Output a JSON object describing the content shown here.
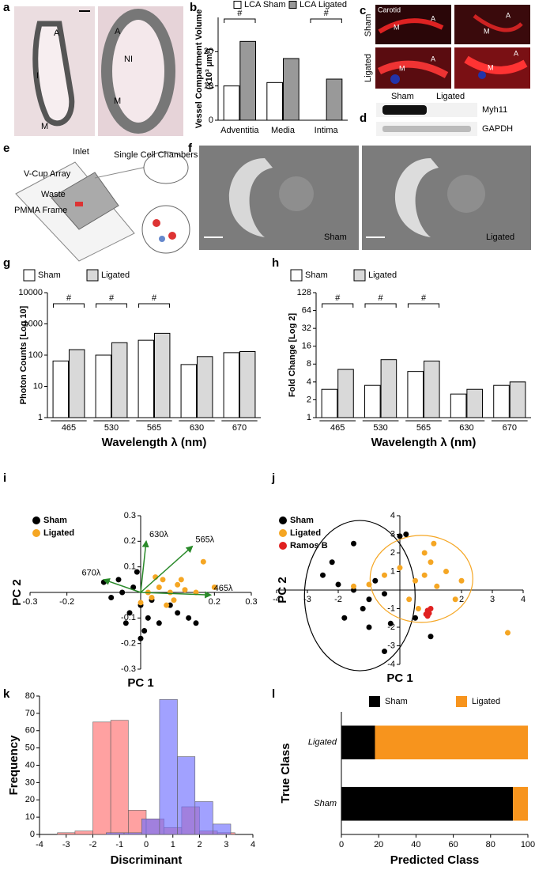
{
  "panel_labels": [
    "a",
    "b",
    "c",
    "d",
    "e",
    "f",
    "g",
    "h",
    "i",
    "j",
    "k",
    "l"
  ],
  "histology": {
    "sham": [
      "A",
      "I",
      "M"
    ],
    "ligated": [
      "A",
      "NI",
      "M"
    ]
  },
  "immunostain": {
    "title": "Carotid",
    "rows": [
      "Sham",
      "Ligated"
    ],
    "tiles": [
      "M",
      "A",
      "M",
      "A",
      "M",
      "A",
      "M",
      "A"
    ]
  },
  "western_blot": {
    "columns": [
      "Sham",
      "Ligated"
    ],
    "rows": [
      "Myh11",
      "GAPDH"
    ]
  },
  "device": {
    "labels": [
      "Inlet",
      "Single Cell Chambers",
      "V-Cup Array",
      "Waste",
      "PMMA Frame"
    ]
  },
  "cell_images": [
    "Sham",
    "Ligated"
  ],
  "chart_data": [
    {
      "type": "bar",
      "ylabel": [
        "Vessel Compartment Volume",
        "(x10³ µm³)"
      ],
      "categories": [
        "Adventitia",
        "Media",
        "Intima"
      ],
      "series": [
        {
          "name": "LCA Sham",
          "color": "#ffffff",
          "values": [
            10,
            11,
            0
          ]
        },
        {
          "name": "LCA Ligated",
          "color": "#999999",
          "values": [
            23,
            18,
            12
          ]
        }
      ],
      "significance": [
        "#",
        null,
        "#"
      ],
      "ylim": [
        0,
        30
      ],
      "yticks": [
        0,
        10,
        20
      ]
    },
    {
      "type": "bar",
      "ylabel": "Photon Counts [Log 10]",
      "xlabel": "Wavelength λ (nm)",
      "log_y": true,
      "categories": [
        "465",
        "530",
        "565",
        "630",
        "670"
      ],
      "series": [
        {
          "name": "Sham",
          "color": "#ffffff",
          "values": [
            65,
            100,
            300,
            50,
            120
          ]
        },
        {
          "name": "Ligated",
          "color": "#d9d9d9",
          "values": [
            150,
            250,
            500,
            90,
            130
          ]
        }
      ],
      "significance": [
        "#",
        "#",
        "#",
        null,
        null
      ],
      "ylim": [
        1,
        10000
      ],
      "yticks": [
        1,
        10,
        100,
        1000,
        10000
      ]
    },
    {
      "type": "bar",
      "ylabel": "Fold Change [Log 2]",
      "xlabel": "Wavelength λ (nm)",
      "log_y": true,
      "categories": [
        "465",
        "530",
        "565",
        "630",
        "670"
      ],
      "series": [
        {
          "name": "Sham",
          "color": "#ffffff",
          "values": [
            3,
            3.5,
            6,
            2.5,
            3.5
          ]
        },
        {
          "name": "Ligated",
          "color": "#d9d9d9",
          "values": [
            6.5,
            9.5,
            9,
            3,
            4
          ]
        }
      ],
      "significance": [
        "#",
        "#",
        "#",
        null,
        null
      ],
      "ylim": [
        1,
        128
      ],
      "yticks": [
        1,
        2,
        4,
        8,
        16,
        32,
        64,
        128
      ]
    },
    {
      "type": "scatter",
      "xlabel": "PC 1",
      "ylabel": "PC 2",
      "series": [
        {
          "name": "Sham",
          "color": "#000000",
          "x": [
            -0.02,
            0.0,
            -0.05,
            -0.03,
            0.02,
            -0.06,
            0.05,
            -0.1,
            0.0,
            0.1,
            0.13,
            0.15,
            -0.01,
            0.03,
            -0.04,
            0.08,
            -0.08,
            0.01
          ],
          "y": [
            0.02,
            -0.05,
            0.0,
            -0.08,
            -0.1,
            0.05,
            -0.12,
            0.04,
            -0.18,
            -0.08,
            -0.1,
            -0.12,
            0.08,
            -0.03,
            -0.12,
            -0.05,
            -0.02,
            -0.15
          ]
        },
        {
          "name": "Ligated",
          "color": "#f5a623",
          "x": [
            0.05,
            0.08,
            0.1,
            0.03,
            0.12,
            0.06,
            0.15,
            0.2,
            0.02,
            0.09,
            0.04,
            0.11,
            0.17,
            0.0,
            0.07
          ],
          "y": [
            0.02,
            0.0,
            0.03,
            -0.02,
            0.01,
            0.05,
            0.0,
            0.02,
            0.0,
            -0.03,
            0.06,
            0.05,
            0.12,
            -0.04,
            -0.05
          ]
        }
      ],
      "loadings": [
        {
          "label": "630λ",
          "x": 0.015,
          "y": 0.2
        },
        {
          "label": "565λ",
          "x": 0.14,
          "y": 0.18
        },
        {
          "label": "670λ",
          "x": -0.1,
          "y": 0.05
        },
        {
          "label": "465λ",
          "x": 0.19,
          "y": -0.01
        }
      ],
      "xlim": [
        -0.3,
        0.3
      ],
      "ylim": [
        -0.3,
        0.3
      ],
      "xticks": [
        -0.3,
        -0.2,
        0.2,
        0.3
      ],
      "yticks": [
        -0.3,
        -0.2,
        -0.1,
        0.1,
        0.2,
        0.3
      ]
    },
    {
      "type": "scatter",
      "xlabel": "PC 1",
      "ylabel": "PC 2",
      "series": [
        {
          "name": "Sham",
          "color": "#000000",
          "x": [
            -1.5,
            -1,
            -2,
            -1.2,
            -0.5,
            -2.5,
            -1.8,
            -0.8,
            -0.3,
            0.2,
            -1,
            -2.2,
            1,
            0.5,
            -1.5,
            0,
            -0.5
          ],
          "y": [
            0,
            -0.5,
            0.3,
            -1,
            -0.2,
            0.8,
            -1.5,
            0.5,
            -1.8,
            3,
            -2,
            1.5,
            -2.5,
            -1.5,
            2.5,
            2.9,
            -3.3
          ]
        },
        {
          "name": "Ligated",
          "color": "#f5a623",
          "x": [
            0.5,
            1,
            0.8,
            1.2,
            0.3,
            -0.5,
            1.5,
            0.8,
            1.1,
            0,
            -1,
            2,
            3.5,
            0.6,
            -1.5,
            1.8
          ],
          "y": [
            0.5,
            1.5,
            2,
            0.2,
            -0.5,
            0.8,
            1,
            0.8,
            2.5,
            1.2,
            0.3,
            0.5,
            -2.3,
            -1,
            0.2,
            -0.5
          ]
        },
        {
          "name": "Ramos B",
          "color": "#e02020",
          "x": [
            0.9,
            0.95,
            0.85,
            1,
            0.9
          ],
          "y": [
            -1.1,
            -1.25,
            -1.3,
            -1,
            -1.4
          ]
        }
      ],
      "xlim": [
        -4,
        4
      ],
      "ylim": [
        -4,
        4
      ],
      "xticks": [
        -4,
        -3,
        -2,
        2,
        3,
        4
      ],
      "yticks": [
        -4,
        -3,
        -2,
        -1,
        1,
        2,
        3,
        4
      ]
    },
    {
      "type": "histogram",
      "xlabel": "Discriminant",
      "ylabel": "Frequency",
      "series": [
        {
          "color": "#ff6f6f",
          "bins": [
            -3.33,
            -2.67,
            -2,
            -1.33,
            -0.67,
            0,
            0.67,
            1.33,
            2,
            2.67,
            3.33
          ],
          "counts": [
            1,
            2,
            65,
            66,
            14,
            9,
            4,
            16,
            2,
            1
          ]
        },
        {
          "color": "#6f6fff",
          "bins": [
            -1.5,
            -0.83,
            -0.17,
            0.5,
            1.17,
            1.83,
            2.5,
            3.17
          ],
          "counts": [
            1,
            1,
            9,
            78,
            45,
            19,
            6
          ]
        }
      ],
      "xlim": [
        -4,
        4
      ],
      "ylim": [
        0,
        80
      ],
      "xticks": [
        -4,
        -3,
        -2,
        -1,
        0,
        1,
        2,
        3,
        4
      ],
      "yticks": [
        0,
        10,
        20,
        30,
        40,
        50,
        60,
        70,
        80
      ]
    },
    {
      "type": "stacked_hbar",
      "xlabel": "Predicted Class",
      "ylabel": "True Class",
      "categories": [
        "Ligated",
        "Sham"
      ],
      "series": [
        {
          "name": "Sham",
          "color": "#000000",
          "values": [
            18,
            92
          ]
        },
        {
          "name": "Ligated",
          "color": "#f7941d",
          "values": [
            82,
            8
          ]
        }
      ],
      "xlim": [
        0,
        100
      ],
      "xticks": [
        0,
        20,
        40,
        60,
        80,
        100
      ]
    }
  ]
}
